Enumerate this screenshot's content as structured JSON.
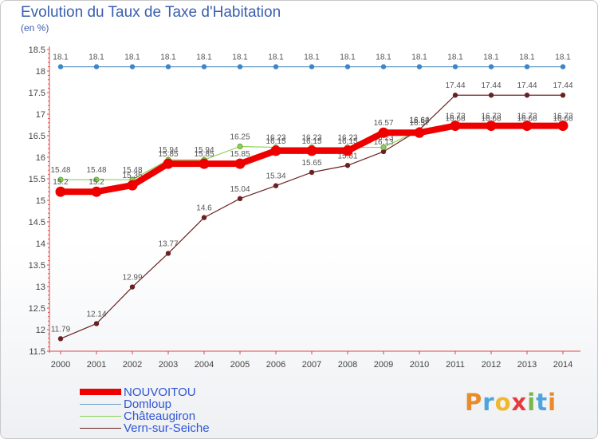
{
  "header": {
    "title": "Evolution du Taux de Taxe d'Habitation",
    "unit": "(en %)"
  },
  "logo": {
    "text": "Proxiti"
  },
  "chart_data": {
    "type": "line",
    "title": "Evolution du Taux de Taxe d'Habitation",
    "ylabel": "(en %)",
    "xlabel": "",
    "x": [
      2000,
      2001,
      2002,
      2003,
      2004,
      2005,
      2006,
      2007,
      2008,
      2009,
      2010,
      2011,
      2012,
      2013,
      2014
    ],
    "ylim": [
      11.5,
      18.5
    ],
    "yticks": [
      11.5,
      12,
      12.5,
      13,
      13.5,
      14,
      14.5,
      15,
      15.5,
      16,
      16.5,
      17,
      17.5,
      18,
      18.5
    ],
    "grid": false,
    "legend_position": "bottom-left",
    "series": [
      {
        "name": "NOUVOITOU",
        "color": "#ee0000",
        "values": [
          15.2,
          15.2,
          15.35,
          15.85,
          15.85,
          15.85,
          16.15,
          16.15,
          16.15,
          16.57,
          16.57,
          16.73,
          16.73,
          16.73,
          16.73
        ]
      },
      {
        "name": "Domloup",
        "color": "#6a9fcc",
        "values": [
          18.1,
          18.1,
          18.1,
          18.1,
          18.1,
          18.1,
          18.1,
          18.1,
          18.1,
          18.1,
          18.1,
          18.1,
          18.1,
          18.1,
          18.1
        ]
      },
      {
        "name": "Châteaugiron",
        "color": "#8ed05a",
        "values": [
          15.48,
          15.48,
          15.48,
          15.94,
          15.94,
          16.25,
          16.23,
          16.23,
          16.23,
          16.23,
          16.63,
          16.68,
          16.68,
          16.68,
          16.68
        ]
      },
      {
        "name": "Vern-sur-Seiche",
        "color": "#6b2121",
        "values": [
          11.79,
          12.14,
          12.99,
          13.77,
          14.6,
          15.04,
          15.34,
          15.65,
          15.81,
          16.13,
          16.64,
          17.44,
          17.44,
          17.44,
          17.44
        ]
      }
    ]
  }
}
